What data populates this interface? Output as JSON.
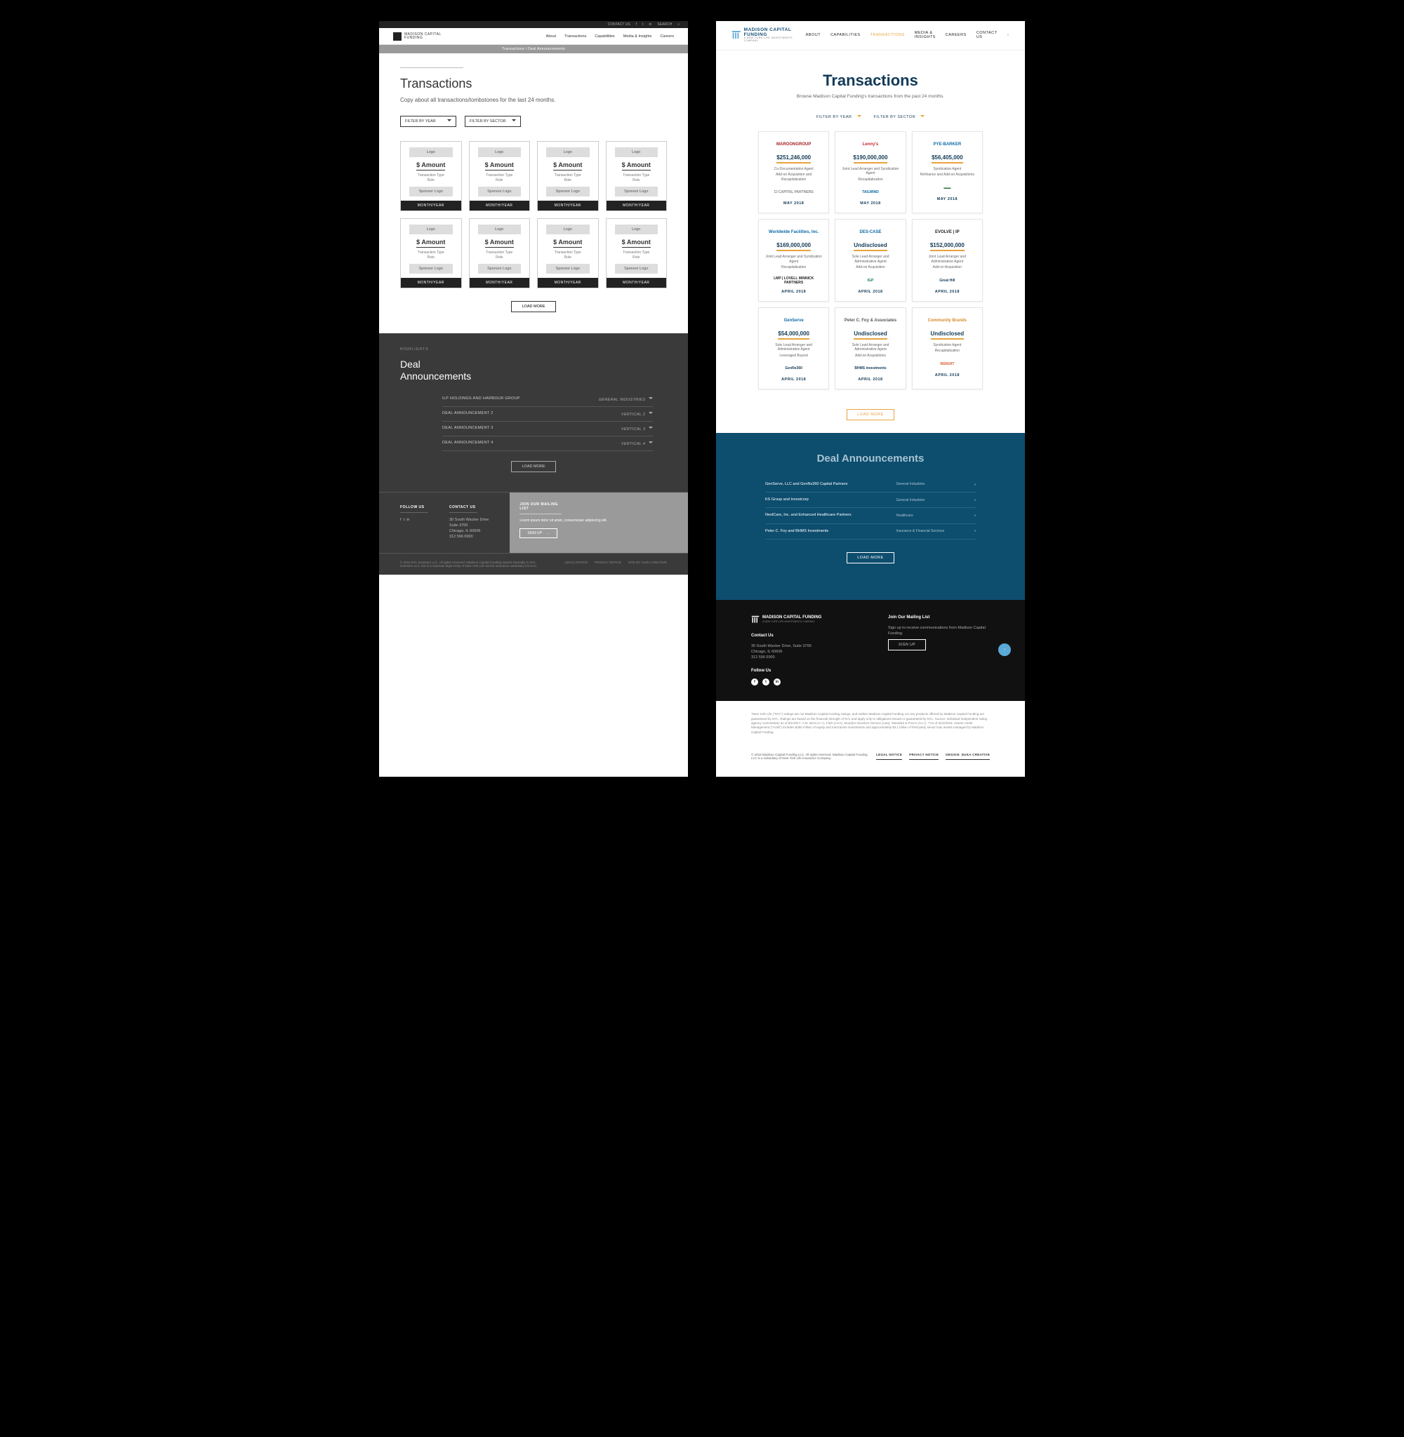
{
  "brand": {
    "name": "MADISON CAPITAL",
    "sub": "FUNDING",
    "tag": "A NEW YORK LIFE INVESTMENTS COMPANY"
  },
  "wireframe": {
    "topbar": {
      "contact": "CONTACT US",
      "search": "SEARCH"
    },
    "nav": [
      "About",
      "Transactions",
      "Capabilities",
      "Media & Insights",
      "Careers"
    ],
    "breadcrumb": "Transactions   /   Deal Announcements",
    "h1": "Transactions",
    "copy": "Copy about all transactions/tombstones for the last 24 months.",
    "filters": [
      "FILTER BY YEAR",
      "FILTER BY SECTOR"
    ],
    "card": {
      "logo": "Logo",
      "amount": "$ Amount",
      "type": "Transaction Type",
      "role": "Role",
      "sponsor": "Sponsor Logo",
      "date": "MONTH/YEAR"
    },
    "loadmore": "LOAD MORE",
    "highlights": "HIGHLIGHTS",
    "h2a": "Deal",
    "h2b": "Announcements",
    "ann": [
      {
        "l": "ILP HOLDINGS AND HARBOUR GROUP",
        "r": "GENERAL INDUSTRIES"
      },
      {
        "l": "DEAL ANNOUNCEMENT 2",
        "r": "VERTICAL 2"
      },
      {
        "l": "DEAL ANNOUNCEMENT 3",
        "r": "VERTICAL 3"
      },
      {
        "l": "DEAL ANNOUNCEMENT 4",
        "r": "VERTICAL 4"
      }
    ],
    "footer": {
      "follow": "FOLLOW US",
      "contact": "CONTACT US",
      "addr1": "30 South Wacker Drive",
      "addr2": "Suite 3700",
      "addr3": "Chicago, IL 60606",
      "addr4": "312 596 6900",
      "mail_h": "JOIN OUR MAILING LIST",
      "mail_p": "Lorem ipsum dolor sit amet, consectetuer adipiscing elit.",
      "signup": "SIGN UP",
      "copyright": "© 2018 NYL Investors LLC. All rights reserved. Madison Capital Funding reports internally to NYL Investors LLC, but is a separate legal entity of New York Life and its insurance subsidiary NYLIAC.",
      "links": [
        "LEGAL NOTICE",
        "PRIVACY NOTICE",
        "SITE BY: DUKA CREATIVE"
      ]
    }
  },
  "design": {
    "nav": [
      "ABOUT",
      "CAPABILITIES",
      "TRANSACTIONS",
      "MEDIA & INSIGHTS",
      "CAREERS",
      "CONTACT US"
    ],
    "nav_active_index": 2,
    "h1": "Transactions",
    "sub": "Browse Madison Capital Funding's transactions from the past 24 months.",
    "filters": [
      "FILTER BY YEAR",
      "FILTER BY SECTOR"
    ],
    "loadmore": "LOAD MORE",
    "cards": [
      {
        "logo": "MAROONGROUP",
        "logo_color": "#a52020",
        "amount": "$251,246,000",
        "role": "Co-Documentation Agent",
        "type": "Add-on Acquisition and Recapitalization",
        "sponsor": "CI CAPITAL PARTNERS",
        "sponsor_color": "#888",
        "date": "MAY 2018"
      },
      {
        "logo": "Lenny's",
        "logo_color": "#c62828",
        "amount": "$190,000,000",
        "role": "Joint Lead Arranger and Syndication Agent",
        "type": "Recapitalization",
        "sponsor": "TAILWIND",
        "sponsor_color": "#0d6aa8",
        "date": "MAY 2018"
      },
      {
        "logo": "PYE-BARKER",
        "logo_color": "#0d6aa8",
        "amount": "$56,405,000",
        "role": "Syndication Agent",
        "type": "Refinance and Add-on Acquisitions",
        "sponsor": "▬▬",
        "sponsor_color": "#2a6b2a",
        "date": "MAY 2018"
      },
      {
        "logo": "Worldwide Facilities, Inc.",
        "logo_color": "#0d6aa8",
        "amount": "$169,000,000",
        "role": "Joint Lead Arranger and Syndication Agent",
        "type": "Recapitalization",
        "sponsor": "LMP | LOVELL MINNICK PARTNERS",
        "sponsor_color": "#222",
        "date": "APRIL 2018"
      },
      {
        "logo": "DES-CASE",
        "logo_color": "#0d6aa8",
        "amount": "Undisclosed",
        "role": "Sole Lead Arranger and Administrative Agent",
        "type": "Add-on Acquisition",
        "sponsor": "IGP",
        "sponsor_color": "#0a7a5a",
        "date": "APRIL 2018"
      },
      {
        "logo": "EVOLVE | IP",
        "logo_color": "#222",
        "amount": "$152,000,000",
        "role": "Joint Lead Arranger and Administrative Agent",
        "type": "Add-on Acquisition",
        "sponsor": "Great Hill",
        "sponsor_color": "#123a56",
        "date": "APRIL 2018"
      },
      {
        "logo": "GenServe",
        "logo_color": "#0d6aa8",
        "amount": "$54,000,000",
        "role": "Sole Lead Arranger and Administrative Agent",
        "type": "Leveraged Buyout",
        "sponsor": "GenNx360",
        "sponsor_color": "#123a56",
        "date": "APRIL 2018"
      },
      {
        "logo": "Peter C. Foy & Associates",
        "logo_color": "#555",
        "amount": "Undisclosed",
        "role": "Sole Lead Arranger and Administrative Agent",
        "type": "Add-on Acquisitions",
        "sponsor": "BHMS investments",
        "sponsor_color": "#123a56",
        "date": "APRIL 2018"
      },
      {
        "logo": "Community Brands",
        "logo_color": "#d88a2a",
        "amount": "Undisclosed",
        "role": "Syndication Agent",
        "type": "Recapitalization",
        "sponsor": "INSIGHT",
        "sponsor_color": "#d85a2a",
        "date": "APRIL 2018"
      }
    ],
    "ann_h": "Deal Announcements",
    "ann": [
      {
        "l": "GenServe, LLC and GenNx360 Capital Partners",
        "r": "General Industries"
      },
      {
        "l": "KS Group and Investcorp",
        "r": "General Industries"
      },
      {
        "l": "NextCare, Inc. and Enhanced Healthcare Partners",
        "r": "Healthcare"
      },
      {
        "l": "Peter C. Foy and BHMS Investments",
        "r": "Insurance & Financial Services"
      }
    ],
    "footer": {
      "contact_h": "Contact Us",
      "addr1": "30 South Wacker Drive, Suite 3700",
      "addr2": "Chicago, IL 60606",
      "addr3": "312 596 6900",
      "follow_h": "Follow Us",
      "mail_h": "Join Our Mailing List",
      "mail_p": "Sign up to receive communications from Madison Capital Funding.",
      "signup": "SIGN UP",
      "fine": "*New York Life (\"NYL\") ratings are not Madison Capital Funding ratings, and neither Madison Capital Funding nor any products offered by Madison Capital Funding are guaranteed by NYL. Ratings are based on the financial strength of NYL and apply only to obligations issued or guaranteed by NYL. Source: Individual independent rating agency commentary as of 8/1/2017: A.M. Best (A++), Fitch (AAA), Moody's Investors Service (Aaa), Standard & Poor's (AA+).\n**As of 3/31/2018. Assets Under Management (\"AUM\") includes $350 million of equity and mezzanine investments and approximately $3.1 billion of third-party senior loan assets managed by Madison Capital Funding.",
      "copyright": "© 2018 Madison Capital Funding LLC. All rights reserved. Madison Capital Funding LLC is a subsidiary of New York Life Insurance Company.",
      "links": [
        "LEGAL NOTICE",
        "PRIVACY NOTICE",
        "DESIGN: DUKA CREATIVE"
      ]
    }
  }
}
